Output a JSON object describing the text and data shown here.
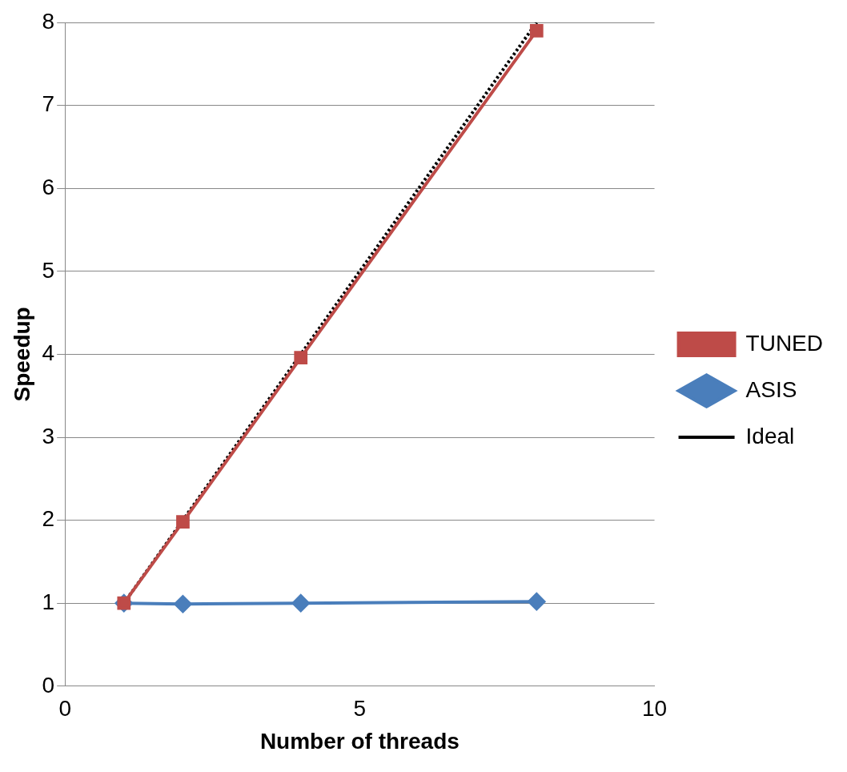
{
  "chart_data": {
    "type": "line",
    "xlabel": "Number of threads",
    "ylabel": "Speedup",
    "xlim": [
      0,
      10
    ],
    "xticks": [
      0,
      5,
      10
    ],
    "ylim": [
      0,
      8
    ],
    "yticks": [
      0,
      1,
      2,
      3,
      4,
      5,
      6,
      7,
      8
    ],
    "grid": "y",
    "legend": "right",
    "series": [
      {
        "name": "Ideal",
        "color": "#000000",
        "x": [
          1,
          2,
          4,
          8
        ],
        "values": [
          1,
          2,
          4,
          8
        ],
        "marker": "none",
        "line_style": "dotted"
      },
      {
        "name": "ASIS",
        "color": "#4a7ebb",
        "x": [
          1,
          2,
          4,
          8
        ],
        "values": [
          1,
          0.99,
          1,
          1.02
        ],
        "marker": "diamond",
        "line_style": "solid"
      },
      {
        "name": "TUNED",
        "color": "#be4b48",
        "x": [
          1,
          2,
          4,
          8
        ],
        "values": [
          1,
          1.98,
          3.96,
          7.9
        ],
        "marker": "square",
        "line_style": "solid"
      }
    ]
  }
}
